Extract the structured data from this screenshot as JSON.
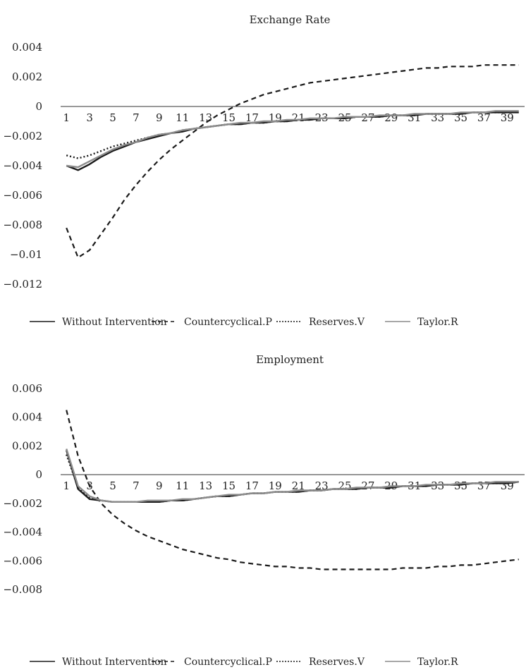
{
  "chart_data": [
    {
      "type": "line",
      "title": "Exchange Rate",
      "xlabel": "",
      "ylabel": "",
      "x": [
        1,
        2,
        3,
        4,
        5,
        6,
        7,
        8,
        9,
        10,
        11,
        12,
        13,
        14,
        15,
        16,
        17,
        18,
        19,
        20,
        21,
        22,
        23,
        24,
        25,
        26,
        27,
        28,
        29,
        30,
        31,
        32,
        33,
        34,
        35,
        36,
        37,
        38,
        39,
        40
      ],
      "x_tick_labels": [
        "1",
        "3",
        "5",
        "7",
        "9",
        "11",
        "13",
        "15",
        "17",
        "19",
        "21",
        "23",
        "25",
        "27",
        "29",
        "31",
        "33",
        "35",
        "37",
        "39"
      ],
      "y_tick_values": [
        0.004,
        0.002,
        0,
        -0.002,
        -0.004,
        -0.006,
        -0.008,
        -0.01,
        -0.012
      ],
      "y_tick_labels": [
        "0.004",
        "0.002",
        "0",
        "−0.002",
        "−0.004",
        "−0.006",
        "−0.008",
        "−0.01",
        "−0.012"
      ],
      "ylim": [
        -0.012,
        0.004
      ],
      "grid": false,
      "legend_position": "bottom",
      "series": [
        {
          "name": "Without Intervention",
          "color": "#1a1a1a",
          "dash": "solid",
          "values": [
            -0.004,
            -0.0043,
            -0.0039,
            -0.0034,
            -0.003,
            -0.0027,
            -0.0024,
            -0.0022,
            -0.002,
            -0.0018,
            -0.0017,
            -0.0015,
            -0.0014,
            -0.0013,
            -0.0012,
            -0.0012,
            -0.0011,
            -0.0011,
            -0.001,
            -0.001,
            -0.0009,
            -0.0009,
            -0.0008,
            -0.0008,
            -0.0008,
            -0.0007,
            -0.0007,
            -0.0007,
            -0.0006,
            -0.0006,
            -0.0006,
            -0.0005,
            -0.0005,
            -0.0005,
            -0.0005,
            -0.0004,
            -0.0004,
            -0.0004,
            -0.0004,
            -0.0004
          ]
        },
        {
          "name": "Countercyclical.P",
          "color": "#1a1a1a",
          "dash": "dashed",
          "values": [
            -0.0082,
            -0.0102,
            -0.0097,
            -0.0086,
            -0.0075,
            -0.0063,
            -0.0053,
            -0.0044,
            -0.0036,
            -0.0029,
            -0.0023,
            -0.0017,
            -0.0011,
            -0.0006,
            -0.0002,
            0.0002,
            0.0005,
            0.0008,
            0.001,
            0.0012,
            0.0014,
            0.0016,
            0.0017,
            0.0018,
            0.0019,
            0.002,
            0.0021,
            0.0022,
            0.0023,
            0.0024,
            0.0025,
            0.0026,
            0.0026,
            0.0027,
            0.0027,
            0.0027,
            0.0028,
            0.0028,
            0.0028,
            0.0028
          ]
        },
        {
          "name": "Reserves.V",
          "color": "#1a1a1a",
          "dash": "dotted",
          "values": [
            -0.0033,
            -0.0035,
            -0.0033,
            -0.003,
            -0.0027,
            -0.0025,
            -0.0023,
            -0.0021,
            -0.0019,
            -0.0018,
            -0.0016,
            -0.0015,
            -0.0014,
            -0.0013,
            -0.0012,
            -0.0012,
            -0.0011,
            -0.0011,
            -0.001,
            -0.001,
            -0.0009,
            -0.0009,
            -0.0008,
            -0.0008,
            -0.0008,
            -0.0007,
            -0.0007,
            -0.0007,
            -0.0006,
            -0.0006,
            -0.0006,
            -0.0005,
            -0.0005,
            -0.0005,
            -0.0005,
            -0.0004,
            -0.0004,
            -0.0004,
            -0.0004,
            -0.0003
          ]
        },
        {
          "name": "Taylor.R",
          "color": "#8c8c8c",
          "dash": "solid",
          "values": [
            -0.004,
            -0.0041,
            -0.0037,
            -0.0033,
            -0.0029,
            -0.0026,
            -0.0024,
            -0.0021,
            -0.0019,
            -0.0018,
            -0.0016,
            -0.0015,
            -0.0014,
            -0.0013,
            -0.0012,
            -0.0011,
            -0.0011,
            -0.001,
            -0.001,
            -0.0009,
            -0.0009,
            -0.0008,
            -0.0008,
            -0.0008,
            -0.0007,
            -0.0007,
            -0.0007,
            -0.0006,
            -0.0006,
            -0.0006,
            -0.0005,
            -0.0005,
            -0.0005,
            -0.0005,
            -0.0004,
            -0.0004,
            -0.0004,
            -0.0003,
            -0.0003,
            -0.0003
          ]
        }
      ]
    },
    {
      "type": "line",
      "title": "Employment",
      "xlabel": "",
      "ylabel": "",
      "x": [
        1,
        2,
        3,
        4,
        5,
        6,
        7,
        8,
        9,
        10,
        11,
        12,
        13,
        14,
        15,
        16,
        17,
        18,
        19,
        20,
        21,
        22,
        23,
        24,
        25,
        26,
        27,
        28,
        29,
        30,
        31,
        32,
        33,
        34,
        35,
        36,
        37,
        38,
        39,
        40
      ],
      "x_tick_labels": [
        "1",
        "3",
        "5",
        "7",
        "9",
        "11",
        "13",
        "15",
        "17",
        "19",
        "21",
        "23",
        "25",
        "27",
        "29",
        "31",
        "33",
        "35",
        "37",
        "39"
      ],
      "y_tick_values": [
        0.006,
        0.004,
        0.002,
        0,
        -0.002,
        -0.004,
        -0.006,
        -0.008
      ],
      "y_tick_labels": [
        "0.006",
        "0.004",
        "0.002",
        "0",
        "−0.002",
        "−0.004",
        "−0.006",
        "−0.008"
      ],
      "ylim": [
        -0.008,
        0.006
      ],
      "grid": false,
      "legend_position": "bottom",
      "series": [
        {
          "name": "Without Intervention",
          "color": "#1a1a1a",
          "dash": "solid",
          "values": [
            0.0017,
            -0.001,
            -0.0017,
            -0.0018,
            -0.0019,
            -0.0019,
            -0.0019,
            -0.0019,
            -0.0019,
            -0.0018,
            -0.0018,
            -0.0017,
            -0.0016,
            -0.0015,
            -0.0015,
            -0.0014,
            -0.0013,
            -0.0013,
            -0.0012,
            -0.0012,
            -0.0012,
            -0.0011,
            -0.0011,
            -0.001,
            -0.001,
            -0.001,
            -0.0009,
            -0.0009,
            -0.0009,
            -0.0008,
            -0.0008,
            -0.0008,
            -0.0007,
            -0.0007,
            -0.0007,
            -0.0006,
            -0.0006,
            -0.0006,
            -0.0006,
            -0.0005
          ]
        },
        {
          "name": "Countercyclical.P",
          "color": "#1a1a1a",
          "dash": "dashed",
          "values": [
            0.0045,
            0.0013,
            -0.0008,
            -0.002,
            -0.0028,
            -0.0034,
            -0.0039,
            -0.0043,
            -0.0046,
            -0.0049,
            -0.0052,
            -0.0054,
            -0.0056,
            -0.0058,
            -0.0059,
            -0.0061,
            -0.0062,
            -0.0063,
            -0.0064,
            -0.0064,
            -0.0065,
            -0.0065,
            -0.0066,
            -0.0066,
            -0.0066,
            -0.0066,
            -0.0066,
            -0.0066,
            -0.0066,
            -0.0065,
            -0.0065,
            -0.0065,
            -0.0064,
            -0.0064,
            -0.0063,
            -0.0063,
            -0.0062,
            -0.0061,
            -0.006,
            -0.0059
          ]
        },
        {
          "name": "Reserves.V",
          "color": "#1a1a1a",
          "dash": "dotted",
          "values": [
            0.0014,
            -0.0009,
            -0.0016,
            -0.0018,
            -0.0019,
            -0.0019,
            -0.0019,
            -0.0019,
            -0.0019,
            -0.0018,
            -0.0018,
            -0.0017,
            -0.0016,
            -0.0015,
            -0.0015,
            -0.0014,
            -0.0013,
            -0.0013,
            -0.0012,
            -0.0012,
            -0.0012,
            -0.0011,
            -0.0011,
            -0.001,
            -0.001,
            -0.001,
            -0.0009,
            -0.0009,
            -0.0009,
            -0.0008,
            -0.0008,
            -0.0008,
            -0.0007,
            -0.0007,
            -0.0007,
            -0.0006,
            -0.0006,
            -0.0006,
            -0.0006,
            -0.0005
          ]
        },
        {
          "name": "Taylor.R",
          "color": "#8c8c8c",
          "dash": "solid",
          "values": [
            0.0018,
            -0.0008,
            -0.0015,
            -0.0018,
            -0.0019,
            -0.0019,
            -0.0019,
            -0.0018,
            -0.0018,
            -0.0018,
            -0.0017,
            -0.0017,
            -0.0016,
            -0.0015,
            -0.0014,
            -0.0014,
            -0.0013,
            -0.0013,
            -0.0012,
            -0.0012,
            -0.0011,
            -0.0011,
            -0.0011,
            -0.001,
            -0.001,
            -0.0009,
            -0.0009,
            -0.0009,
            -0.0008,
            -0.0008,
            -0.0008,
            -0.0007,
            -0.0007,
            -0.0007,
            -0.0006,
            -0.0006,
            -0.0006,
            -0.0005,
            -0.0005,
            -0.0005
          ]
        }
      ]
    }
  ]
}
